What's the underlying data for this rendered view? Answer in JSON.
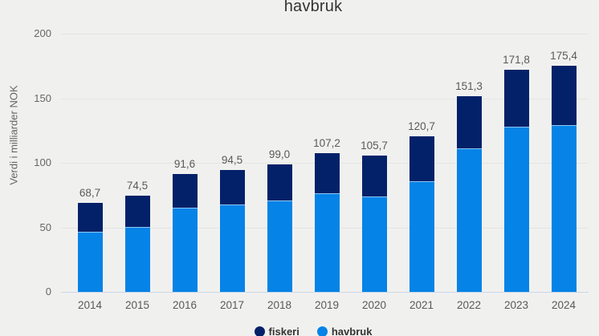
{
  "chart": {
    "title": "havbruk",
    "y_axis": {
      "label": "Verdi i milliarder NOK",
      "ticks": [
        0,
        50,
        100,
        150,
        200
      ],
      "max": 200
    },
    "legend": {
      "items": [
        {
          "label": "fiskeri",
          "color": "#032169"
        },
        {
          "label": "havbruk",
          "color": "#0583e6"
        }
      ]
    }
  },
  "chart_data": {
    "type": "bar",
    "stacked": true,
    "title": "havbruk",
    "ylabel": "Verdi i milliarder NOK",
    "ylim": [
      0,
      200
    ],
    "grid": true,
    "legend_position": "bottom",
    "categories": [
      "2014",
      "2015",
      "2016",
      "2017",
      "2018",
      "2019",
      "2020",
      "2021",
      "2022",
      "2023",
      "2024"
    ],
    "series_stack_order": "bottom_to_top",
    "series": [
      {
        "name": "havbruk",
        "color": "#0583e6",
        "values": [
          46.5,
          50.5,
          65.0,
          67.7,
          70.8,
          76.4,
          74.1,
          85.5,
          110.9,
          128.2,
          129.0
        ]
      },
      {
        "name": "fiskeri",
        "color": "#032169",
        "values": [
          22.2,
          24.0,
          26.6,
          26.8,
          28.2,
          30.8,
          31.6,
          35.2,
          40.4,
          43.6,
          46.4
        ]
      }
    ],
    "totals": [
      68.7,
      74.5,
      91.6,
      94.5,
      99.0,
      107.2,
      105.7,
      120.7,
      151.3,
      171.8,
      175.4
    ],
    "total_labels": [
      "68,7",
      "74,5",
      "91,6",
      "94,5",
      "99,0",
      "107,2",
      "105,7",
      "120,7",
      "151,3",
      "171,8",
      "175,4"
    ]
  },
  "colors": {
    "background": "#f0f1ef",
    "fiskeri": "#032169",
    "havbruk": "#0583e6",
    "grid": "#e4e5e2",
    "axis_line": "#ccd6eb",
    "tick_text": "#666666",
    "data_label_text": "#595959",
    "title_text": "#333333",
    "legend_text": "#333333"
  }
}
